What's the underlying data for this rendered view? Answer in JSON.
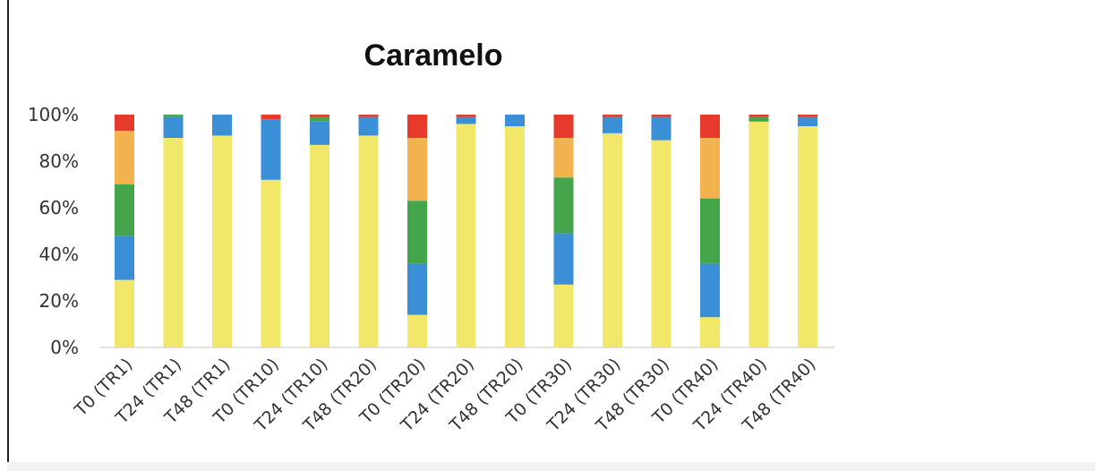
{
  "chart_data": {
    "type": "bar",
    "stacked": true,
    "title": "Caramelo",
    "xlabel": "",
    "ylabel": "",
    "ylim": [
      0,
      100
    ],
    "y_ticks": [
      "0%",
      "20%",
      "40%",
      "60%",
      "80%",
      "100%"
    ],
    "grid": false,
    "legend": "none",
    "categories": [
      "T0 (TR1)",
      "T24 (TR1)",
      "T48 (TR1)",
      "T0 (TR10)",
      "T24 (TR10)",
      "T48 (TR20)",
      "T0 (TR20)",
      "T24 (TR20)",
      "T48 (TR20)",
      "T0 (TR30)",
      "T24 (TR30)",
      "T48 (TR30)",
      "T0 (TR40)",
      "T24 (TR40)",
      "T48 (TR40)"
    ],
    "series": [
      {
        "color": "#f1e86a",
        "values": [
          29,
          90,
          91,
          72,
          87,
          91,
          14,
          96,
          95,
          27,
          92,
          89,
          13,
          97,
          95
        ]
      },
      {
        "color": "#3a8fd6",
        "values": [
          19,
          9,
          9,
          26,
          10,
          8,
          22,
          3,
          5,
          22,
          7,
          10,
          23,
          0,
          4
        ]
      },
      {
        "color": "#45a54b",
        "values": [
          22,
          1,
          0,
          0,
          2,
          0,
          27,
          0,
          0,
          24,
          0,
          0,
          28,
          2,
          0
        ]
      },
      {
        "color": "#f2b24e",
        "values": [
          23,
          0,
          0,
          0,
          0,
          0,
          27,
          0,
          0,
          17,
          0,
          0,
          26,
          0,
          0
        ]
      },
      {
        "color": "#e63b2c",
        "values": [
          7,
          0,
          0,
          2,
          1,
          1,
          10,
          1,
          0,
          10,
          1,
          1,
          10,
          1,
          1
        ]
      }
    ]
  }
}
